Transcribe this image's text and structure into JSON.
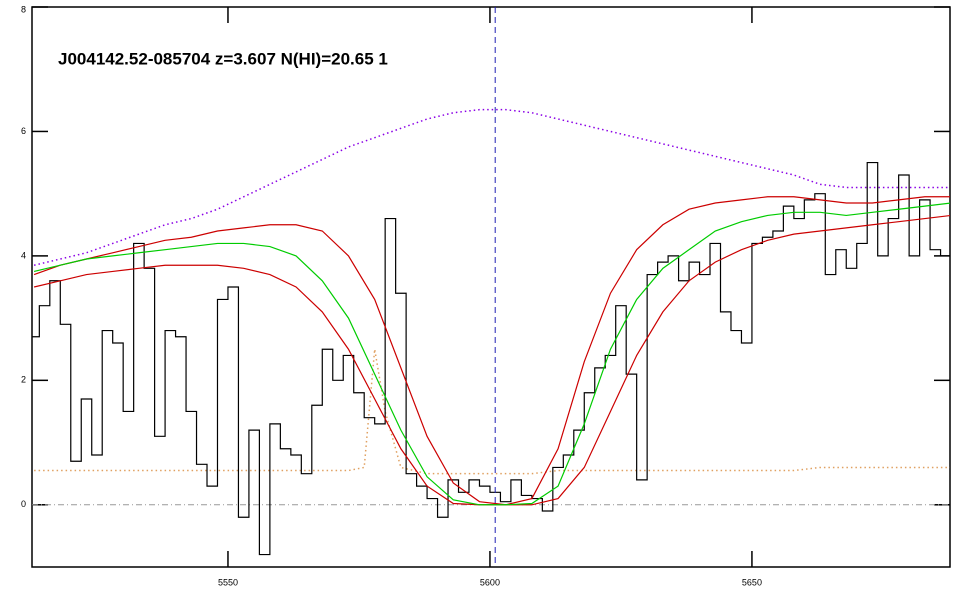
{
  "chart_data": {
    "type": "line",
    "title": "J004142.52-085704 z=3.607 N(HI)=20.65 1",
    "xlim": [
      5512.6,
      5687.8
    ],
    "ylim": [
      -1,
      8
    ],
    "xticks": [
      5550,
      5600,
      5650
    ],
    "yticks": [
      0,
      2,
      4,
      6,
      8
    ],
    "marker_x": 5601,
    "marker_x_color": "#1f1fb4",
    "reference_y": 0,
    "reference_y_color": "#999999",
    "series": [
      {
        "color": "#000000",
        "linestyle": "steps",
        "x": [
          5513,
          5515,
          5517,
          5519,
          5521,
          5523,
          5525,
          5527,
          5529,
          5531,
          5533,
          5535,
          5537,
          5539,
          5541,
          5543,
          5545,
          5547,
          5549,
          5551,
          5553,
          5555,
          5557,
          5559,
          5561,
          5563,
          5565,
          5567,
          5569,
          5571,
          5573,
          5575,
          5577,
          5579,
          5581,
          5583,
          5585,
          5587,
          5589,
          5591,
          5593,
          5595,
          5597,
          5599,
          5601,
          5603,
          5605,
          5607,
          5609,
          5611,
          5613,
          5615,
          5617,
          5619,
          5621,
          5623,
          5625,
          5627,
          5629,
          5631,
          5633,
          5635,
          5637,
          5639,
          5641,
          5643,
          5645,
          5647,
          5649,
          5651,
          5653,
          5655,
          5657,
          5659,
          5661,
          5663,
          5665,
          5667,
          5669,
          5671,
          5673,
          5675,
          5677,
          5679,
          5681,
          5683,
          5685,
          5687
        ],
        "values": [
          2.7,
          3.2,
          3.6,
          2.9,
          0.7,
          1.7,
          0.8,
          2.8,
          2.6,
          1.5,
          4.2,
          3.8,
          1.1,
          2.8,
          2.7,
          1.5,
          0.65,
          0.3,
          3.3,
          3.5,
          -0.2,
          1.2,
          -0.8,
          1.3,
          0.9,
          0.8,
          0.5,
          1.6,
          2.5,
          2.0,
          2.4,
          1.8,
          1.4,
          1.3,
          4.6,
          3.4,
          0.5,
          0.3,
          0.1,
          -0.2,
          0.4,
          0.2,
          0.4,
          0.3,
          0.2,
          0.05,
          0.4,
          0.15,
          0.1,
          -0.1,
          0.6,
          0.8,
          1.2,
          1.8,
          2.2,
          2.4,
          3.2,
          2.1,
          0.4,
          3.7,
          3.9,
          4.0,
          3.6,
          3.9,
          3.7,
          4.2,
          3.1,
          2.8,
          2.6,
          4.2,
          4.3,
          4.4,
          4.8,
          4.6,
          4.9,
          5.0,
          3.7,
          4.1,
          3.8,
          4.2,
          5.5,
          4.0,
          4.6,
          5.3,
          4.0,
          4.9,
          4.1,
          4.0
        ]
      },
      {
        "color": "#00cc00",
        "linestyle": "solid",
        "x": [
          5513,
          5518,
          5523,
          5528,
          5533,
          5538,
          5543,
          5548,
          5553,
          5558,
          5563,
          5568,
          5573,
          5578,
          5583,
          5588,
          5593,
          5598,
          5603,
          5608,
          5613,
          5618,
          5623,
          5628,
          5633,
          5638,
          5643,
          5648,
          5653,
          5658,
          5663,
          5668,
          5673,
          5678,
          5683,
          5688
        ],
        "values": [
          3.75,
          3.85,
          3.95,
          4.0,
          4.05,
          4.1,
          4.15,
          4.2,
          4.2,
          4.15,
          4.0,
          3.6,
          3.0,
          2.1,
          1.2,
          0.45,
          0.08,
          0.0,
          0.0,
          0.02,
          0.3,
          1.3,
          2.5,
          3.3,
          3.8,
          4.1,
          4.4,
          4.55,
          4.65,
          4.7,
          4.7,
          4.65,
          4.7,
          4.75,
          4.8,
          4.85
        ]
      },
      {
        "color": "#cc0000",
        "linestyle": "solid",
        "x": [
          5513,
          5518,
          5523,
          5528,
          5533,
          5538,
          5543,
          5548,
          5553,
          5558,
          5563,
          5568,
          5573,
          5578,
          5583,
          5588,
          5593,
          5598,
          5603,
          5608,
          5613,
          5618,
          5623,
          5628,
          5633,
          5638,
          5643,
          5648,
          5653,
          5658,
          5663,
          5668,
          5673,
          5678,
          5683,
          5688
        ],
        "values": [
          3.7,
          3.85,
          3.95,
          4.05,
          4.15,
          4.25,
          4.3,
          4.4,
          4.45,
          4.5,
          4.5,
          4.4,
          4.0,
          3.3,
          2.2,
          1.1,
          0.35,
          0.05,
          0.0,
          0.1,
          0.9,
          2.3,
          3.4,
          4.1,
          4.5,
          4.75,
          4.85,
          4.9,
          4.95,
          4.95,
          4.9,
          4.85,
          4.85,
          4.9,
          4.95,
          4.95
        ]
      },
      {
        "color": "#cc0000",
        "linestyle": "solid",
        "x": [
          5513,
          5518,
          5523,
          5528,
          5533,
          5538,
          5543,
          5548,
          5553,
          5558,
          5563,
          5568,
          5573,
          5578,
          5583,
          5588,
          5593,
          5598,
          5603,
          5608,
          5613,
          5618,
          5623,
          5628,
          5633,
          5638,
          5643,
          5648,
          5653,
          5658,
          5663,
          5668,
          5673,
          5678,
          5683,
          5688
        ],
        "values": [
          3.5,
          3.6,
          3.7,
          3.75,
          3.8,
          3.85,
          3.85,
          3.85,
          3.8,
          3.7,
          3.5,
          3.1,
          2.5,
          1.7,
          0.9,
          0.3,
          0.02,
          0.0,
          0.0,
          0.0,
          0.1,
          0.6,
          1.5,
          2.4,
          3.1,
          3.6,
          3.9,
          4.1,
          4.25,
          4.35,
          4.4,
          4.45,
          4.5,
          4.55,
          4.6,
          4.65
        ]
      },
      {
        "color": "#8a00e6",
        "linestyle": "dotted",
        "x": [
          5513,
          5518,
          5523,
          5528,
          5533,
          5538,
          5543,
          5548,
          5553,
          5558,
          5563,
          5568,
          5573,
          5578,
          5583,
          5588,
          5593,
          5598,
          5603,
          5608,
          5613,
          5618,
          5623,
          5628,
          5633,
          5638,
          5643,
          5648,
          5653,
          5658,
          5663,
          5668,
          5673,
          5678,
          5683,
          5688
        ],
        "values": [
          3.85,
          3.95,
          4.05,
          4.2,
          4.35,
          4.5,
          4.6,
          4.75,
          4.95,
          5.15,
          5.35,
          5.55,
          5.75,
          5.9,
          6.05,
          6.2,
          6.3,
          6.35,
          6.35,
          6.3,
          6.2,
          6.1,
          6.0,
          5.9,
          5.8,
          5.7,
          5.6,
          5.5,
          5.4,
          5.3,
          5.15,
          5.1,
          5.1,
          5.1,
          5.1,
          5.1
        ]
      },
      {
        "color": "#e0a060",
        "linestyle": "dotted",
        "x": [
          5513,
          5518,
          5523,
          5528,
          5533,
          5538,
          5543,
          5548,
          5553,
          5558,
          5563,
          5568,
          5573,
          5576,
          5578,
          5580,
          5583,
          5588,
          5593,
          5598,
          5603,
          5608,
          5613,
          5618,
          5623,
          5628,
          5633,
          5638,
          5643,
          5648,
          5653,
          5658,
          5663,
          5668,
          5673,
          5678,
          5683,
          5688
        ],
        "values": [
          0.55,
          0.55,
          0.55,
          0.55,
          0.55,
          0.55,
          0.55,
          0.55,
          0.55,
          0.55,
          0.55,
          0.55,
          0.55,
          0.6,
          2.5,
          1.5,
          0.6,
          0.5,
          0.5,
          0.5,
          0.5,
          0.5,
          0.55,
          0.55,
          0.55,
          0.55,
          0.55,
          0.55,
          0.55,
          0.55,
          0.55,
          0.55,
          0.6,
          0.6,
          0.6,
          0.6,
          0.6,
          0.6
        ]
      }
    ]
  }
}
